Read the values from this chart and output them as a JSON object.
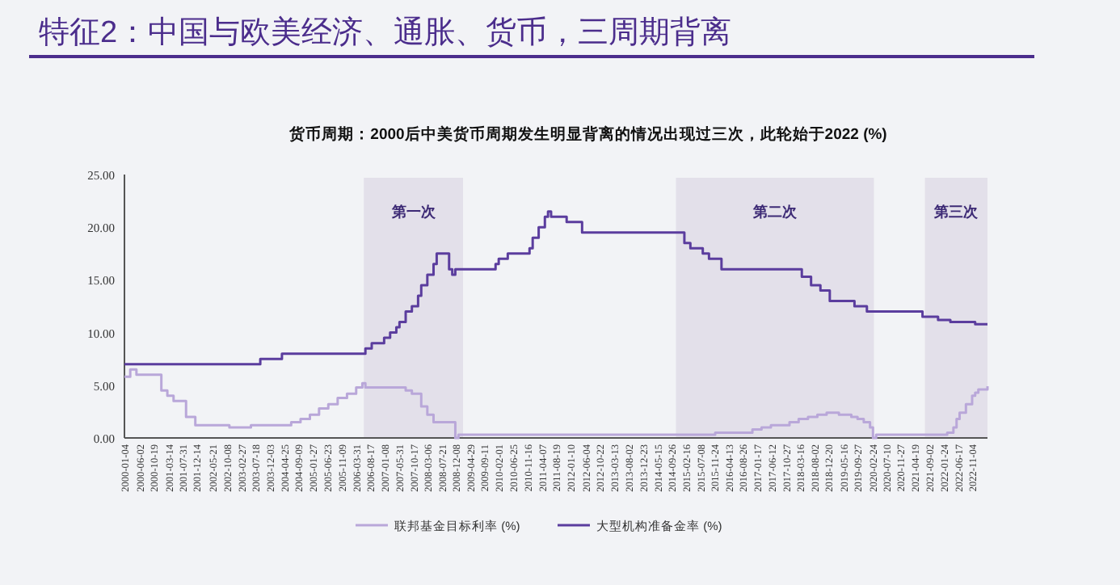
{
  "chart_data": {
    "type": "step",
    "title": "特征2：中国与欧美经济、通胀、货币，三周期背离",
    "subtitle": "货币周期：2000后中美货币周期发生明显背离的情况出现过三次，此轮始于2022 (%)",
    "xlim": [
      "2000-01-04",
      "2023-04-01"
    ],
    "xticks": [
      "2000-01-04",
      "2000-06-02",
      "2000-10-19",
      "2001-03-14",
      "2001-07-31",
      "2001-12-14",
      "2002-05-21",
      "2002-10-08",
      "2003-02-27",
      "2003-07-18",
      "2003-12-03",
      "2004-04-25",
      "2004-09-09",
      "2005-01-27",
      "2005-06-23",
      "2005-11-09",
      "2006-03-31",
      "2006-08-17",
      "2007-01-08",
      "2007-05-31",
      "2007-10-17",
      "2008-03-06",
      "2008-07-21",
      "2008-12-08",
      "2009-04-29",
      "2009-09-11",
      "2010-02-01",
      "2010-06-25",
      "2010-11-16",
      "2011-04-07",
      "2011-08-19",
      "2012-01-10",
      "2012-06-04",
      "2012-10-22",
      "2013-03-13",
      "2013-08-02",
      "2013-12-23",
      "2014-05-15",
      "2014-09-26",
      "2015-02-16",
      "2015-07-08",
      "2015-11-24",
      "2016-04-13",
      "2016-08-26",
      "2017-01-17",
      "2017-06-12",
      "2017-10-27",
      "2018-03-16",
      "2018-08-02",
      "2018-12-20",
      "2019-05-16",
      "2019-09-27",
      "2020-02-24",
      "2020-07-10",
      "2020-11-27",
      "2021-04-19",
      "2021-09-02",
      "2022-01-24",
      "2022-06-17",
      "2022-11-04"
    ],
    "ylim": [
      0,
      25
    ],
    "yticks": [
      {
        "value": 0,
        "label": "0.00"
      },
      {
        "value": 5,
        "label": "5.00"
      },
      {
        "value": 10,
        "label": "10.00"
      },
      {
        "value": 15,
        "label": "15.00"
      },
      {
        "value": 20,
        "label": "20.00"
      },
      {
        "value": 25,
        "label": "25.00"
      }
    ],
    "grid": false,
    "legend": "bottom",
    "bands": [
      {
        "axis": "x",
        "from": "2006-06-15",
        "to": "2009-02-15",
        "label": "第一次",
        "color": "#e3e0ea"
      },
      {
        "axis": "x",
        "from": "2014-11-10",
        "to": "2020-03-10",
        "label": "第二次",
        "color": "#e3e0ea"
      },
      {
        "axis": "x",
        "from": "2021-07-25",
        "to": "2023-04-01",
        "label": "第三次",
        "color": "#e3e0ea"
      }
    ],
    "series": [
      {
        "name": "联邦基金目标利率 (%)",
        "color": "#b9a7d9",
        "x": [
          "2000-01-04",
          "2000-03",
          "2000-05",
          "2001-01",
          "2001-03",
          "2001-05",
          "2001-09",
          "2001-12",
          "2002-11",
          "2003-06",
          "2004-07",
          "2004-10",
          "2005-01",
          "2005-04",
          "2005-07",
          "2005-10",
          "2006-01",
          "2006-04",
          "2006-06",
          "2006-07",
          "2007-08",
          "2007-10",
          "2008-01",
          "2008-03",
          "2008-05",
          "2008-12",
          "2009-01",
          "2015-12",
          "2016-12",
          "2017-03",
          "2017-06",
          "2017-12",
          "2018-03",
          "2018-06",
          "2018-09",
          "2018-12",
          "2019-04",
          "2019-08",
          "2019-10",
          "2019-12",
          "2020-02",
          "2020-03",
          "2020-04",
          "2022-03",
          "2022-05",
          "2022-06",
          "2022-07",
          "2022-09",
          "2022-11",
          "2022-12",
          "2023-01",
          "2023-04-01"
        ],
        "values": [
          5.8,
          6.5,
          6.0,
          4.5,
          4.0,
          3.5,
          2.0,
          1.2,
          1.0,
          1.2,
          1.5,
          1.8,
          2.2,
          2.8,
          3.2,
          3.8,
          4.2,
          4.8,
          5.2,
          4.8,
          4.5,
          4.2,
          3.0,
          2.2,
          1.5,
          0.0,
          0.3,
          0.5,
          0.8,
          1.0,
          1.2,
          1.5,
          1.8,
          2.0,
          2.2,
          2.4,
          2.2,
          2.0,
          1.8,
          1.5,
          1.0,
          0.0,
          0.3,
          0.5,
          1.0,
          1.8,
          2.4,
          3.2,
          4.0,
          4.3,
          4.6,
          4.9
        ]
      },
      {
        "name": "大型机构准备金率 (%)",
        "color": "#5b3d9e",
        "x": [
          "2000-01-04",
          "2003-09",
          "2004-04",
          "2006-07",
          "2006-09",
          "2007-01",
          "2007-03",
          "2007-05",
          "2007-06",
          "2007-08",
          "2007-10",
          "2007-12",
          "2008-01",
          "2008-03",
          "2008-05",
          "2008-06",
          "2008-10",
          "2008-11",
          "2008-12",
          "2010-01",
          "2010-02",
          "2010-05",
          "2010-12",
          "2011-01",
          "2011-03",
          "2011-05",
          "2011-06",
          "2011-07",
          "2011-12",
          "2012-05",
          "2015-02",
          "2015-04",
          "2015-08",
          "2015-10",
          "2016-02",
          "2018-04",
          "2018-07",
          "2018-10",
          "2019-01",
          "2019-09",
          "2020-01",
          "2021-07",
          "2021-12",
          "2022-04",
          "2022-12",
          "2023-04-01"
        ],
        "values": [
          7.0,
          7.5,
          8.0,
          8.5,
          9.0,
          9.5,
          10.0,
          10.5,
          11.0,
          12.0,
          12.5,
          13.5,
          14.5,
          15.5,
          16.5,
          17.5,
          16.0,
          15.5,
          16.0,
          16.5,
          17.0,
          17.5,
          18.0,
          19.0,
          20.0,
          21.0,
          21.5,
          21.0,
          20.5,
          19.5,
          18.5,
          18.0,
          17.5,
          17.0,
          16.0,
          15.3,
          14.5,
          14.0,
          13.0,
          12.5,
          12.0,
          11.5,
          11.2,
          11.0,
          10.8,
          10.8
        ]
      }
    ]
  }
}
